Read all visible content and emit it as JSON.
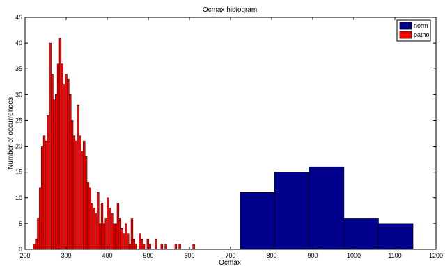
{
  "chart_data": {
    "type": "bar",
    "title": "Ocmax histogram",
    "xlabel": "Ocmax",
    "ylabel": "Number of occurrences",
    "xlim": [
      200,
      1200
    ],
    "ylim": [
      0,
      45
    ],
    "xticks": [
      200,
      300,
      400,
      500,
      600,
      700,
      800,
      900,
      1000,
      1100,
      1200
    ],
    "yticks": [
      0,
      5,
      10,
      15,
      20,
      25,
      30,
      35,
      40,
      45
    ],
    "grid": false,
    "legend_position": "top-right",
    "series": [
      {
        "name": "norm",
        "color": "#00008b",
        "bins": [
          {
            "x0": 723,
            "x1": 807,
            "value": 11
          },
          {
            "x0": 807,
            "x1": 891,
            "value": 15
          },
          {
            "x0": 891,
            "x1": 976,
            "value": 16
          },
          {
            "x0": 976,
            "x1": 1060,
            "value": 6
          },
          {
            "x0": 1060,
            "x1": 1144,
            "value": 5
          }
        ]
      },
      {
        "name": "patho",
        "color": "#ff0000",
        "bin_start": 220,
        "bin_width": 4.85,
        "values": [
          1,
          2,
          6,
          12,
          20,
          22,
          21,
          26,
          40,
          34,
          29,
          30,
          36,
          41,
          36,
          32,
          34,
          33,
          30,
          25,
          22,
          21,
          28,
          22,
          19,
          21,
          18,
          13,
          12,
          9,
          8,
          7,
          11,
          5,
          9,
          5,
          6,
          10,
          8,
          7,
          5,
          5,
          9,
          6,
          4,
          3,
          5,
          3,
          1,
          6,
          2,
          1,
          0,
          3,
          2,
          1,
          0,
          2,
          1,
          0,
          0,
          2,
          0,
          0,
          1,
          0,
          1,
          0,
          0,
          0,
          0,
          1,
          0,
          1,
          0,
          0,
          0,
          0,
          0,
          0,
          1
        ],
        "fill_gaps": true
      }
    ],
    "legend": [
      {
        "label": "norm",
        "color": "#00008b"
      },
      {
        "label": "patho",
        "color": "#ff0000"
      }
    ]
  }
}
